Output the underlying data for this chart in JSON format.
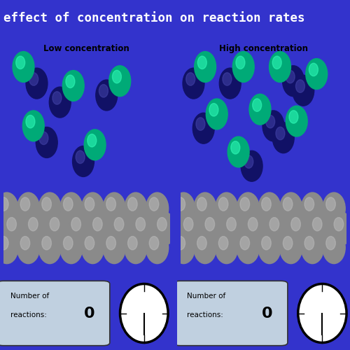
{
  "title": "effect of concentration on reaction rates",
  "title_bg": "#1a1472",
  "title_color": "#ffffff",
  "panel_bg": "#3333cc",
  "box_bg": "#dce8f5",
  "left_label": "Low concentration",
  "right_label": "High concentration",
  "gray_ball_color": "#8a8a8a",
  "gray_highlight": "#bbbbbb",
  "green_ball_color": "#00aa77",
  "green_highlight": "#33ffbb",
  "blue_ball_color": "#111166",
  "blue_highlight": "#4444aa",
  "low_molecules": [
    {
      "gx": 0.12,
      "gy": 0.88,
      "bx": 0.2,
      "by": 0.81
    },
    {
      "gx": 0.42,
      "gy": 0.8,
      "bx": 0.34,
      "by": 0.73
    },
    {
      "gx": 0.18,
      "gy": 0.63,
      "bx": 0.26,
      "by": 0.56
    },
    {
      "gx": 0.7,
      "gy": 0.82,
      "bx": 0.62,
      "by": 0.76
    },
    {
      "gx": 0.55,
      "gy": 0.55,
      "bx": 0.48,
      "by": 0.48
    }
  ],
  "high_molecules": [
    {
      "gx": 0.15,
      "gy": 0.88,
      "bx": 0.08,
      "by": 0.81
    },
    {
      "gx": 0.38,
      "gy": 0.88,
      "bx": 0.3,
      "by": 0.81
    },
    {
      "gx": 0.6,
      "gy": 0.88,
      "bx": 0.68,
      "by": 0.82
    },
    {
      "gx": 0.82,
      "gy": 0.85,
      "bx": 0.74,
      "by": 0.78
    },
    {
      "gx": 0.22,
      "gy": 0.68,
      "bx": 0.14,
      "by": 0.62
    },
    {
      "gx": 0.48,
      "gy": 0.7,
      "bx": 0.56,
      "by": 0.63
    },
    {
      "gx": 0.7,
      "gy": 0.65,
      "bx": 0.62,
      "by": 0.58
    },
    {
      "gx": 0.35,
      "gy": 0.52,
      "bx": 0.43,
      "by": 0.46
    }
  ]
}
